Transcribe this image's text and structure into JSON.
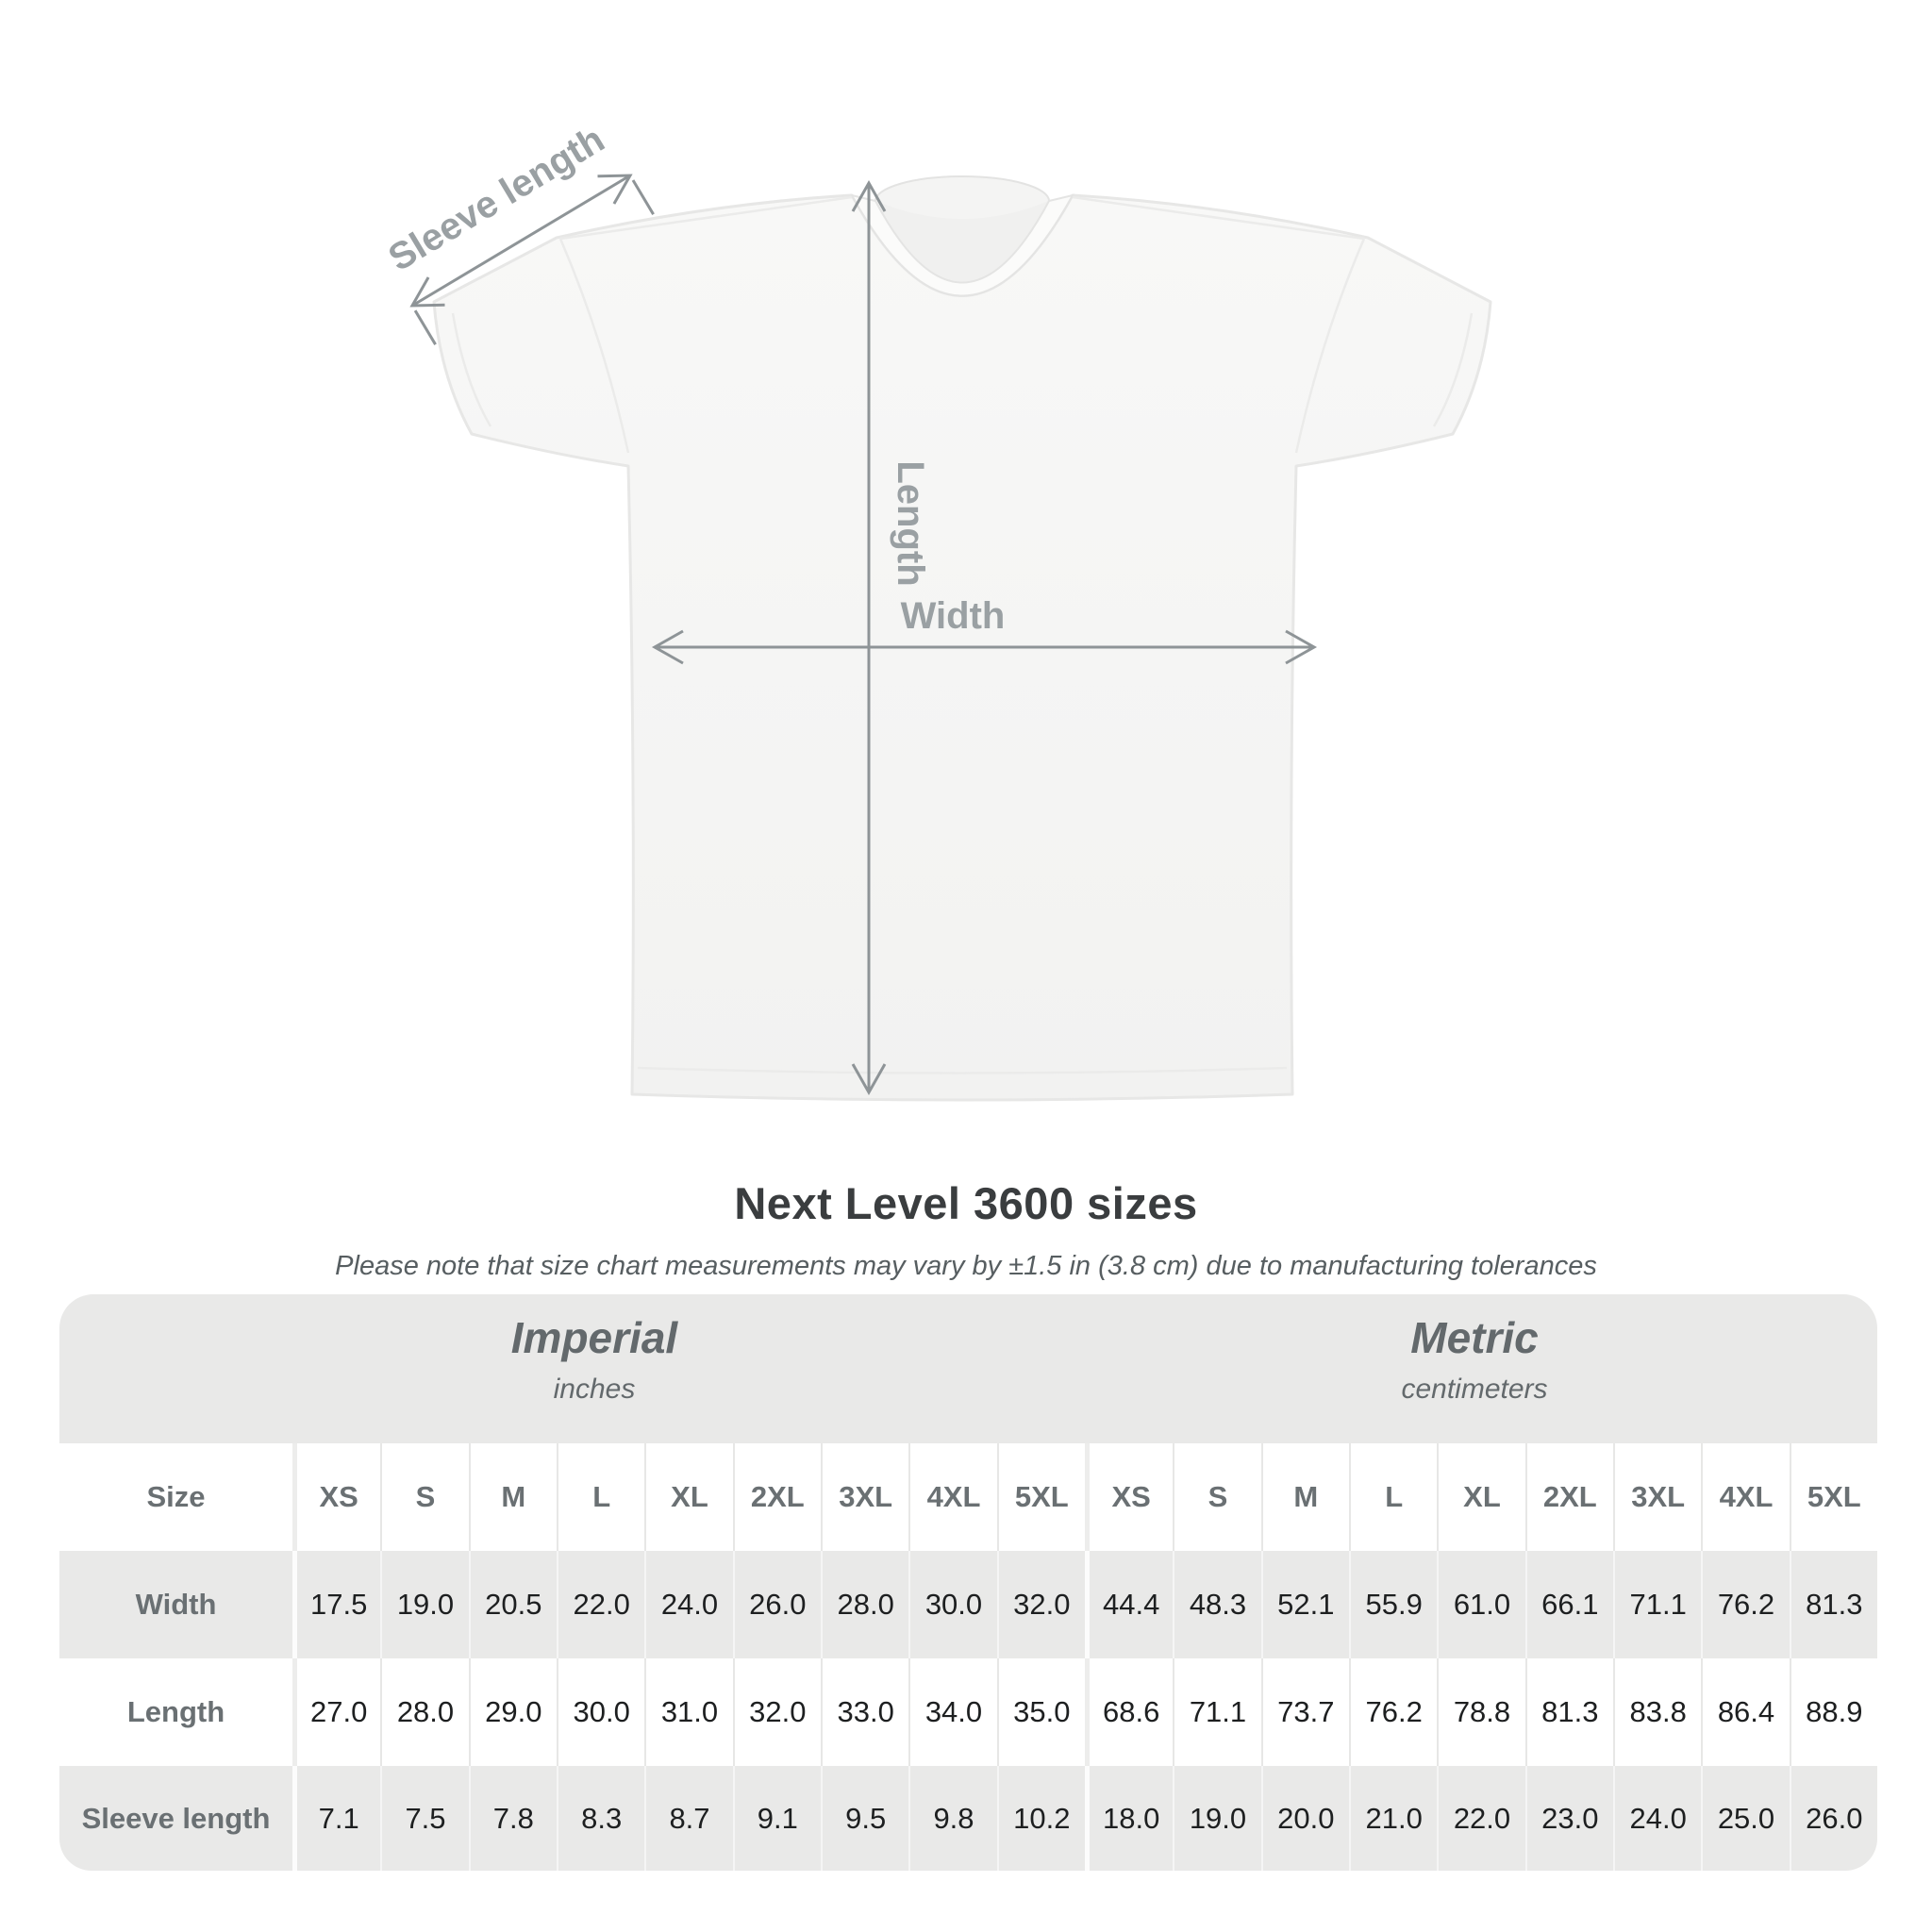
{
  "title": "Next Level 3600 sizes",
  "subtitle": "Please note that size chart measurements may vary by ±1.5 in (3.8 cm) due to manufacturing tolerances",
  "diagram": {
    "sleeve_label": "Sleeve length",
    "length_label": "Length",
    "width_label": "Width",
    "line_color": "#8e9497",
    "label_color": "#9aa0a3",
    "shirt_fill": "#f7f7f6",
    "shirt_outline": "#e7e7e6"
  },
  "table": {
    "size_header": "Size",
    "sizes": [
      "XS",
      "S",
      "M",
      "L",
      "XL",
      "2XL",
      "3XL",
      "4XL",
      "5XL"
    ],
    "sections": [
      {
        "label": "Imperial",
        "sublabel": "inches"
      },
      {
        "label": "Metric",
        "sublabel": "centimeters"
      }
    ],
    "rows": [
      {
        "label": "Width",
        "imperial": [
          "17.5",
          "19.0",
          "20.5",
          "22.0",
          "24.0",
          "26.0",
          "28.0",
          "30.0",
          "32.0"
        ],
        "metric": [
          "44.4",
          "48.3",
          "52.1",
          "55.9",
          "61.0",
          "66.1",
          "71.1",
          "76.2",
          "81.3"
        ]
      },
      {
        "label": "Length",
        "imperial": [
          "27.0",
          "28.0",
          "29.0",
          "30.0",
          "31.0",
          "32.0",
          "33.0",
          "34.0",
          "35.0"
        ],
        "metric": [
          "68.6",
          "71.1",
          "73.7",
          "76.2",
          "78.8",
          "81.3",
          "83.8",
          "86.4",
          "88.9"
        ]
      },
      {
        "label": "Sleeve length",
        "imperial": [
          "7.1",
          "7.5",
          "7.8",
          "8.3",
          "8.7",
          "9.1",
          "9.5",
          "9.8",
          "10.2"
        ],
        "metric": [
          "18.0",
          "19.0",
          "20.0",
          "21.0",
          "22.0",
          "23.0",
          "24.0",
          "25.0",
          "26.0"
        ]
      }
    ],
    "colors": {
      "band": "#e9e9e8",
      "row_alt": "#ffffff",
      "label": "#6a7073",
      "value": "#1d1f20"
    }
  },
  "chart_data": {
    "type": "table",
    "title": "Next Level 3600 sizes",
    "note": "Measurements may vary by ±1.5 in (3.8 cm) due to manufacturing tolerances",
    "sizes": [
      "XS",
      "S",
      "M",
      "L",
      "XL",
      "2XL",
      "3XL",
      "4XL",
      "5XL"
    ],
    "units": {
      "imperial": "inches",
      "metric": "centimeters"
    },
    "measurements": [
      {
        "label": "Width",
        "imperial_in": [
          17.5,
          19.0,
          20.5,
          22.0,
          24.0,
          26.0,
          28.0,
          30.0,
          32.0
        ],
        "metric_cm": [
          44.4,
          48.3,
          52.1,
          55.9,
          61.0,
          66.1,
          71.1,
          76.2,
          81.3
        ]
      },
      {
        "label": "Length",
        "imperial_in": [
          27.0,
          28.0,
          29.0,
          30.0,
          31.0,
          32.0,
          33.0,
          34.0,
          35.0
        ],
        "metric_cm": [
          68.6,
          71.1,
          73.7,
          76.2,
          78.8,
          81.3,
          83.8,
          86.4,
          88.9
        ]
      },
      {
        "label": "Sleeve length",
        "imperial_in": [
          7.1,
          7.5,
          7.8,
          8.3,
          8.7,
          9.1,
          9.5,
          9.8,
          10.2
        ],
        "metric_cm": [
          18.0,
          19.0,
          20.0,
          21.0,
          22.0,
          23.0,
          24.0,
          25.0,
          26.0
        ]
      }
    ]
  }
}
